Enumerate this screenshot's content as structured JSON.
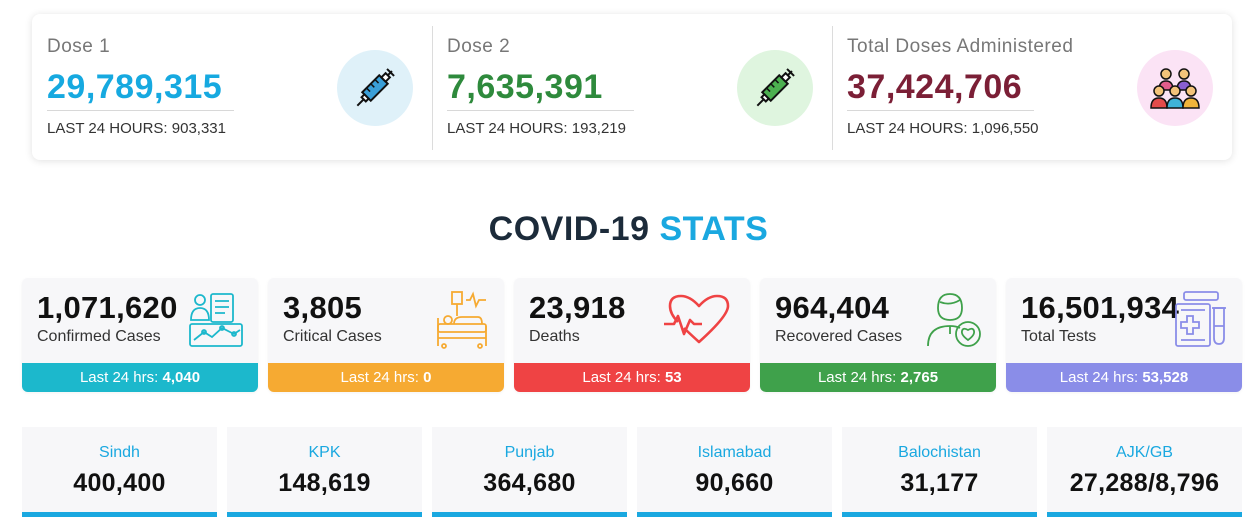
{
  "vaccines": [
    {
      "label": "Dose 1",
      "value": "29,789,315",
      "sub": "LAST 24 HOURS: 903,331",
      "value_color": "#16a9e0",
      "icon": "syringe-icon",
      "icon_bg": "#dff1f9"
    },
    {
      "label": "Dose 2",
      "value": "7,635,391",
      "sub": "LAST 24 HOURS: 193,219",
      "value_color": "#2e8a3c",
      "icon": "syringe-icon",
      "icon_bg": "#dff5df"
    },
    {
      "label": "Total Doses Administered",
      "value": "37,424,706",
      "sub": "LAST 24 HOURS: 1,096,550",
      "value_color": "#7b1f36",
      "icon": "crowd-icon",
      "icon_bg": "#fbe3f5"
    }
  ],
  "heading": {
    "part1": "COVID-19",
    "part2": "STATS"
  },
  "stats": [
    {
      "value": "1,071,620",
      "label": "Confirmed Cases",
      "foot_label": "Last 24 hrs:",
      "foot_value": "4,040",
      "color": "#1cb8cc",
      "icon": "medical-report-icon"
    },
    {
      "value": "3,805",
      "label": "Critical Cases",
      "foot_label": "Last 24 hrs:",
      "foot_value": "0",
      "color": "#f6aa32",
      "icon": "hospital-bed-icon"
    },
    {
      "value": "23,918",
      "label": "Deaths",
      "foot_label": "Last 24 hrs:",
      "foot_value": "53",
      "color": "#ef4344",
      "icon": "heartbeat-icon"
    },
    {
      "value": "964,404",
      "label": "Recovered Cases",
      "foot_label": "Last 24 hrs:",
      "foot_value": "2,765",
      "color": "#3fa14b",
      "icon": "recovered-person-icon"
    },
    {
      "value": "16,501,934",
      "label": "Total Tests",
      "foot_label": "Last 24 hrs:",
      "foot_value": "53,528",
      "color": "#8a8de8",
      "icon": "lab-test-icon"
    }
  ],
  "provinces": [
    {
      "name": "Sindh",
      "value": "400,400"
    },
    {
      "name": "KPK",
      "value": "148,619"
    },
    {
      "name": "Punjab",
      "value": "364,680"
    },
    {
      "name": "Islamabad",
      "value": "90,660"
    },
    {
      "name": "Balochistan",
      "value": "31,177"
    },
    {
      "name": "AJK/GB",
      "value": "27,288/8,796"
    }
  ]
}
